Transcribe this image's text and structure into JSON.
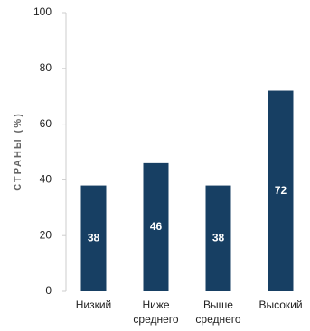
{
  "chart_data": {
    "type": "bar",
    "ylabel": "СТРАНЫ (%)",
    "categories": [
      "Низкий",
      "Ниже среднего",
      "Выше среднего",
      "Высокий"
    ],
    "values": [
      38,
      46,
      38,
      72
    ],
    "color": "#173f63",
    "ylim": [
      0,
      100
    ],
    "yticks": [
      0,
      20,
      40,
      60,
      80,
      100
    ]
  }
}
